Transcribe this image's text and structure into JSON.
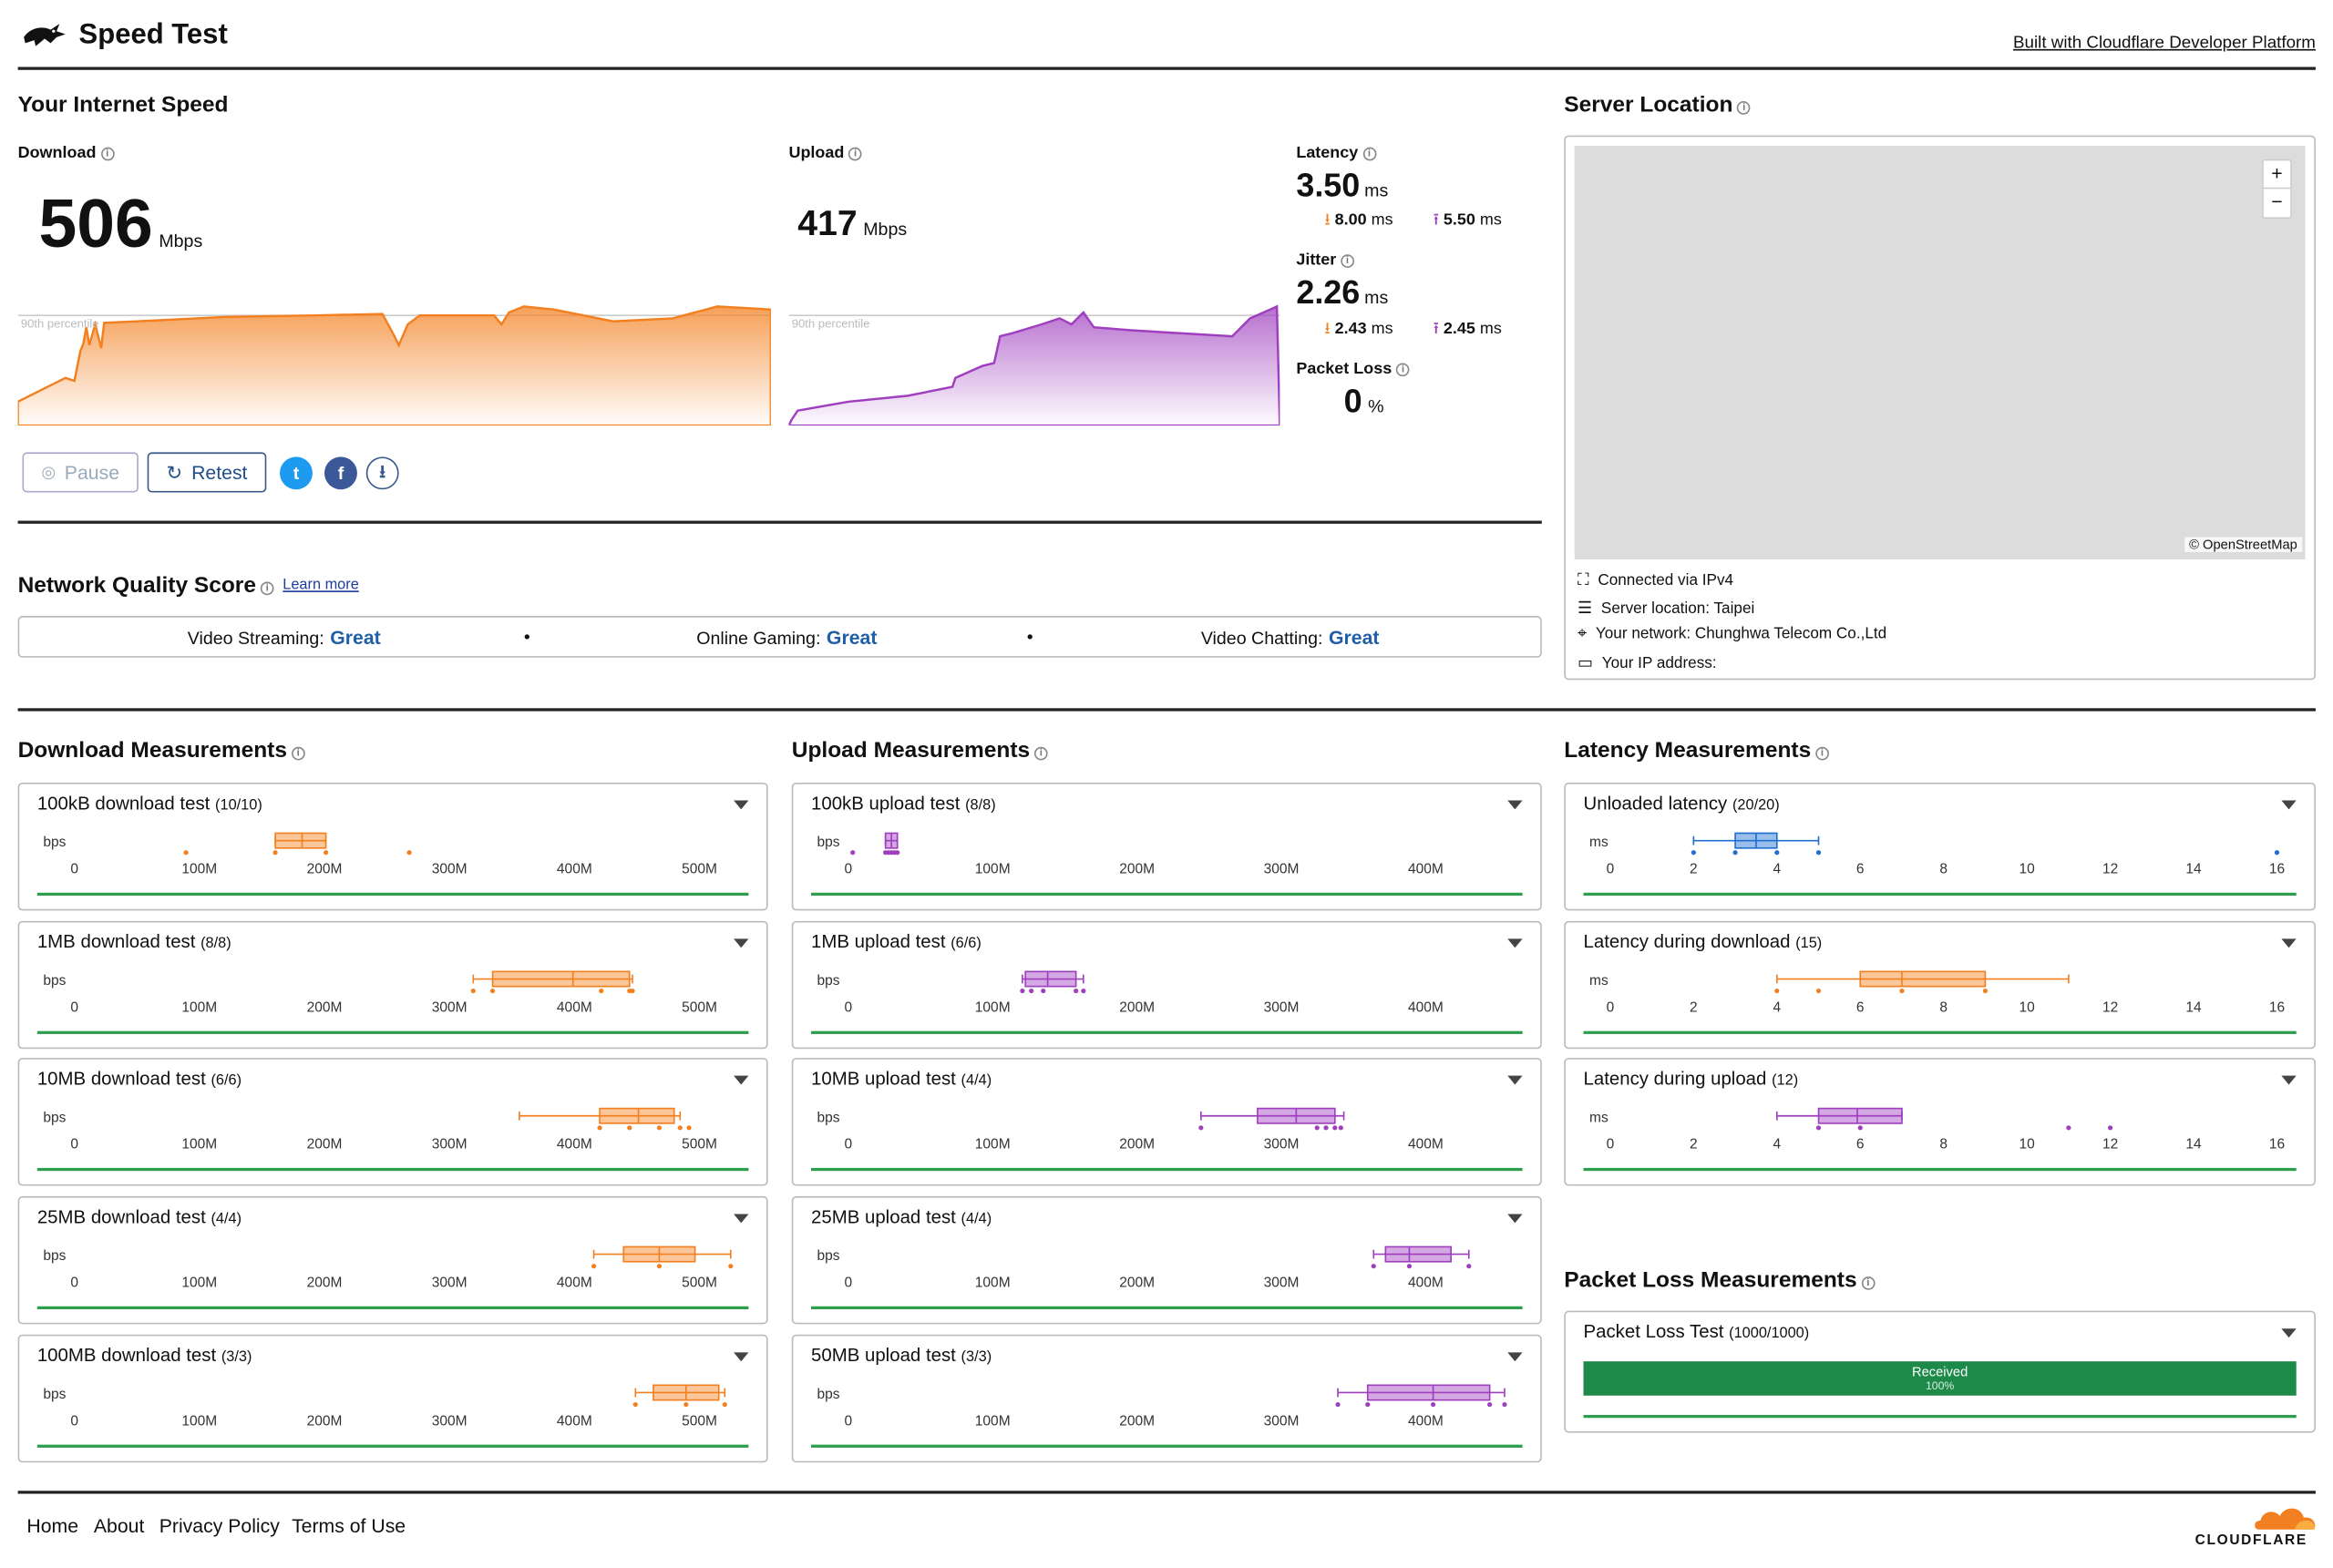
{
  "header": {
    "title": "Speed Test",
    "built_with": "Built with Cloudflare Developer Platform"
  },
  "speed": {
    "title": "Your Internet Speed",
    "download": {
      "label": "Download",
      "value": "506",
      "unit": "Mbps",
      "percentile": "90th percentile"
    },
    "upload": {
      "label": "Upload",
      "value": "417",
      "unit": "Mbps",
      "percentile": "90th percentile"
    },
    "latency": {
      "label": "Latency",
      "value": "3.50",
      "unit": "ms",
      "down": "8.00",
      "up": "5.50",
      "sub_unit": "ms"
    },
    "jitter": {
      "label": "Jitter",
      "value": "2.26",
      "unit": "ms",
      "down": "2.43",
      "up": "2.45",
      "sub_unit": "ms"
    },
    "packet_loss": {
      "label": "Packet Loss",
      "value": "0",
      "unit": "%"
    },
    "buttons": {
      "pause": "Pause",
      "retest": "Retest"
    }
  },
  "server": {
    "title": "Server Location",
    "map_credit": "© OpenStreetMap",
    "zoom_in": "+",
    "zoom_out": "−",
    "info": [
      "Connected via IPv4",
      "Server location: Taipei",
      "Your network: Chunghwa Telecom Co.,Ltd",
      "Your IP address:"
    ]
  },
  "nqs": {
    "title": "Network Quality Score",
    "learn_more": "Learn more",
    "items": [
      {
        "label": "Video Streaming:",
        "value": "Great"
      },
      {
        "label": "Online Gaming:",
        "value": "Great"
      },
      {
        "label": "Video Chatting:",
        "value": "Great"
      }
    ],
    "sep": "•"
  },
  "colors": {
    "download": "#f38020",
    "upload": "#9f3fbf",
    "latency": "#1f6fd0",
    "good": "#2e9e4c",
    "packet_bar": "#1e8a4a",
    "link": "#1f5ea8"
  },
  "download_measurements": {
    "title": "Download Measurements",
    "unit": "bps",
    "ticks": [
      "0",
      "100M",
      "200M",
      "300M",
      "400M",
      "500M"
    ],
    "tests": [
      {
        "name": "100kB download test",
        "count": "(10/10)"
      },
      {
        "name": "1MB download test",
        "count": "(8/8)"
      },
      {
        "name": "10MB download test",
        "count": "(6/6)"
      },
      {
        "name": "25MB download test",
        "count": "(4/4)"
      },
      {
        "name": "100MB download test",
        "count": "(3/3)"
      }
    ]
  },
  "upload_measurements": {
    "title": "Upload Measurements",
    "unit": "bps",
    "ticks": [
      "0",
      "100M",
      "200M",
      "300M",
      "400M"
    ],
    "tests": [
      {
        "name": "100kB upload test",
        "count": "(8/8)"
      },
      {
        "name": "1MB upload test",
        "count": "(6/6)"
      },
      {
        "name": "10MB upload test",
        "count": "(4/4)"
      },
      {
        "name": "25MB upload test",
        "count": "(4/4)"
      },
      {
        "name": "50MB upload test",
        "count": "(3/3)"
      }
    ]
  },
  "latency_measurements": {
    "title": "Latency Measurements",
    "unit": "ms",
    "ticks": [
      "0",
      "2",
      "4",
      "6",
      "8",
      "10",
      "12",
      "14",
      "16"
    ],
    "tests": [
      {
        "name": "Unloaded latency",
        "count": "(20/20)"
      },
      {
        "name": "Latency during download",
        "count": "(15)"
      },
      {
        "name": "Latency during upload",
        "count": "(12)"
      }
    ]
  },
  "packet_loss_measurements": {
    "title": "Packet Loss Measurements",
    "test": {
      "name": "Packet Loss Test",
      "count": "(1000/1000)"
    },
    "bar_label": "Received",
    "bar_pct": "100%",
    "received_fraction": 1.0
  },
  "footer": {
    "links": [
      "Home",
      "About",
      "Privacy Policy",
      "Terms of Use"
    ],
    "brand": "CLOUDFLARE"
  }
}
